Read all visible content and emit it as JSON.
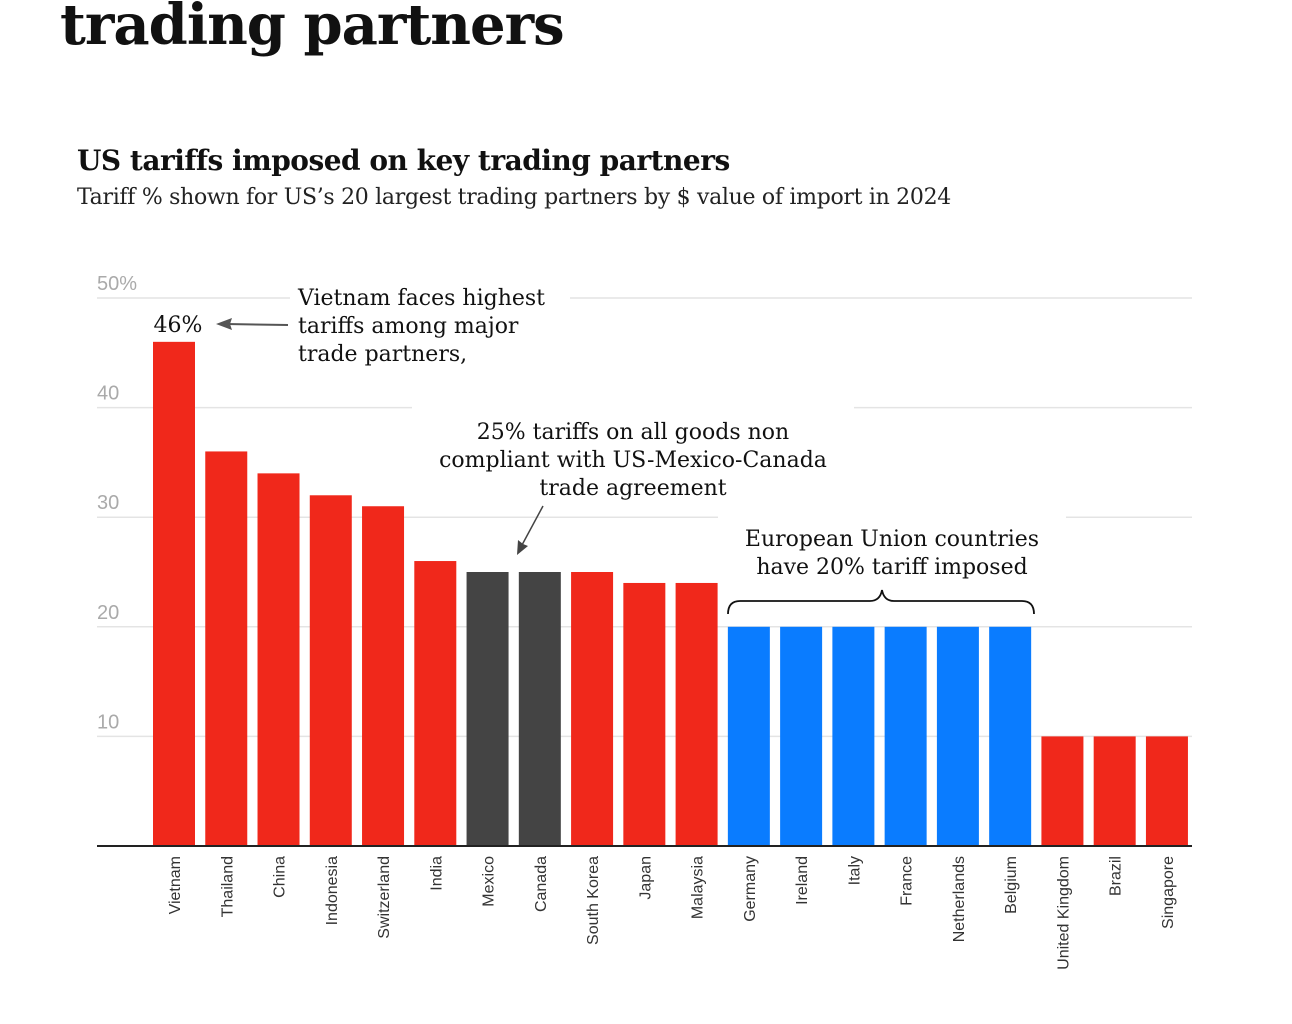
{
  "headline": "trading partners",
  "chart_data": {
    "type": "bar",
    "title": "US tariffs imposed on key trading partners",
    "subtitle": "Tariff % shown for US’s 20 largest trading partners by $ value of import in 2024",
    "categories": [
      "Vietnam",
      "Thailand",
      "China",
      "Indonesia",
      "Switzerland",
      "India",
      "Mexico",
      "Canada",
      "South Korea",
      "Japan",
      "Malaysia",
      "Germany",
      "Ireland",
      "Italy",
      "France",
      "Netherlands",
      "Belgium",
      "United Kingdom",
      "Brazil",
      "Singapore"
    ],
    "values": [
      46,
      36,
      34,
      32,
      31,
      26,
      25,
      25,
      25,
      24,
      24,
      20,
      20,
      20,
      20,
      20,
      20,
      10,
      10,
      10
    ],
    "groups": [
      "other",
      "other",
      "other",
      "other",
      "other",
      "other",
      "usmca",
      "usmca",
      "other",
      "other",
      "other",
      "eu",
      "eu",
      "eu",
      "eu",
      "eu",
      "eu",
      "other",
      "other",
      "other"
    ],
    "colors": {
      "other": "#f0281b",
      "usmca": "#444444",
      "eu": "#0a7cff"
    },
    "ylim": [
      0,
      50
    ],
    "yticks": [
      {
        "v": 10,
        "label": "10"
      },
      {
        "v": 20,
        "label": "20"
      },
      {
        "v": 30,
        "label": "30"
      },
      {
        "v": 40,
        "label": "40"
      },
      {
        "v": 50,
        "label": "50%"
      }
    ],
    "grid": true,
    "data_labels": [
      {
        "category": "Vietnam",
        "label": "46%"
      }
    ],
    "annotations": {
      "vietnam": [
        "Vietnam faces highest",
        "tariffs among major",
        "trade partners,"
      ],
      "usmca": [
        "25% tariffs on all goods non",
        "compliant with US-Mexico-Canada",
        "trade agreement"
      ],
      "eu": [
        "European Union countries",
        "have 20% tariff imposed"
      ]
    }
  }
}
